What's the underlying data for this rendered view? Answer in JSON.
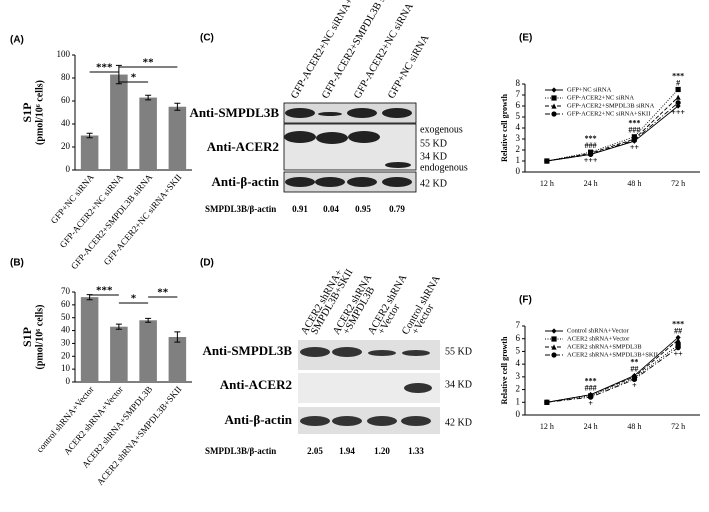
{
  "chart_data": [
    {
      "type": "bar",
      "label": "(A)",
      "ylabel": [
        "S1P",
        "(pmol/10⁶ cells)"
      ],
      "categories": [
        "GFP+NC siRNA",
        "GFP-ACER2+NC siRNA",
        "GFP-ACER2+SMPDL3B siRNA",
        "GFP-ACER2+NC siRNA+SKII"
      ],
      "values": [
        30,
        83,
        63,
        55
      ],
      "errors": [
        2,
        8,
        2,
        3
      ],
      "color": "#808080",
      "ylim": [
        0,
        100
      ],
      "yticks": [
        0,
        20,
        40,
        60,
        80,
        100
      ],
      "significance": [
        {
          "from": 0,
          "to": 1,
          "label": "***"
        },
        {
          "from": 1,
          "to": 2,
          "label": "*"
        },
        {
          "from": 1,
          "to": 3,
          "label": "**"
        }
      ]
    },
    {
      "type": "bar",
      "label": "(B)",
      "ylabel": [
        "S1P",
        "(pmol/10⁶ cells)"
      ],
      "categories": [
        "control shRNA+Vector",
        "ACER2 shRNA+Vector",
        "ACER2 shRNA+SMPDL3B",
        "ACER2 shRNA+SMPDL3B+SKII"
      ],
      "values": [
        66,
        43,
        48,
        35
      ],
      "errors": [
        2,
        2,
        1.5,
        4
      ],
      "color": "#808080",
      "ylim": [
        0,
        70
      ],
      "yticks": [
        0,
        10,
        20,
        30,
        40,
        50,
        60,
        70
      ],
      "significance": [
        {
          "from": 0,
          "to": 1,
          "label": "***"
        },
        {
          "from": 1,
          "to": 2,
          "label": "*"
        },
        {
          "from": 2,
          "to": 3,
          "label": "**"
        }
      ]
    },
    {
      "type": "line",
      "label": "(E)",
      "ylabel": "Relative cell growth",
      "categories": [
        "12 h",
        "24 h",
        "48 h",
        "72 h"
      ],
      "series": [
        {
          "name": "GFP+NC siRNA",
          "color": "#000000",
          "dash": "solid",
          "marker": "diamond",
          "values": [
            1,
            1.6,
            2.8,
            6.0
          ]
        },
        {
          "name": "GFP-ACER2+NC siRNA",
          "color": "#000000",
          "dash": "dotted",
          "marker": "square",
          "values": [
            1,
            1.8,
            3.2,
            7.5
          ]
        },
        {
          "name": "GFP-ACER2+SMPDL3B siRNA",
          "color": "#000000",
          "dash": "dashed",
          "marker": "triangle",
          "values": [
            1,
            1.7,
            3.0,
            6.8
          ]
        },
        {
          "name": "GFP-ACER2+NC siRNA+SKII",
          "color": "#000000",
          "dash": "dashdot",
          "marker": "circle",
          "values": [
            1,
            1.6,
            2.9,
            6.3
          ]
        }
      ],
      "ylim": [
        0,
        8
      ],
      "yticks": [
        0,
        1,
        2,
        3,
        4,
        5,
        6,
        7,
        8
      ],
      "annotations": [
        {
          "category": 1,
          "above": [
            "***",
            "###"
          ],
          "below": [
            "+++"
          ]
        },
        {
          "category": 2,
          "above": [
            "***",
            "###"
          ],
          "below": [
            "++"
          ]
        },
        {
          "category": 3,
          "above": [
            "***",
            "#"
          ],
          "below": [
            "+++"
          ]
        }
      ]
    },
    {
      "type": "line",
      "label": "(F)",
      "ylabel": "Relative cell growth",
      "categories": [
        "12 h",
        "24 h",
        "48 h",
        "72 h"
      ],
      "series": [
        {
          "name": "Control shRNA+Vector",
          "color": "#000000",
          "dash": "solid",
          "marker": "diamond",
          "values": [
            1,
            1.6,
            3.1,
            6.1
          ]
        },
        {
          "name": "ACER2 shRNA+Vector",
          "color": "#000000",
          "dash": "dotted",
          "marker": "square",
          "values": [
            1,
            1.5,
            2.9,
            5.5
          ]
        },
        {
          "name": "ACER2 shRNA+SMPDL3B",
          "color": "#000000",
          "dash": "dashed",
          "marker": "triangle",
          "values": [
            1,
            1.6,
            3.0,
            5.9
          ]
        },
        {
          "name": "ACER2 shRNA+SMPDL3B+SKII",
          "color": "#000000",
          "dash": "dashdot",
          "marker": "circle",
          "values": [
            1,
            1.4,
            2.8,
            5.3
          ]
        }
      ],
      "ylim": [
        0,
        7
      ],
      "yticks": [
        0,
        1,
        2,
        3,
        4,
        5,
        6,
        7
      ],
      "annotations": [
        {
          "category": 1,
          "above": [
            "***",
            "###"
          ],
          "below": [
            "+"
          ]
        },
        {
          "category": 2,
          "above": [
            "**",
            "##"
          ],
          "below": [
            "+"
          ]
        },
        {
          "category": 3,
          "above": [
            "***",
            "##"
          ],
          "below": [
            "++"
          ]
        }
      ]
    }
  ],
  "blots": [
    {
      "label": "(C)",
      "lanes": [
        [
          "GFP-ACER2+NC siRNA+SKII"
        ],
        [
          "GFP-ACER2+SMPDL3B siRNA"
        ],
        [
          "GFP-ACER2+NC siRNA"
        ],
        [
          "GFP+NC siRNA"
        ]
      ],
      "rows": [
        "Anti-SMPDL3B",
        "Anti-ACER2",
        "Anti-β-actin"
      ],
      "markers": [
        "exogenous",
        "55 KD",
        "34 KD",
        "endogenous",
        "42 KD"
      ],
      "ratio_label": "SMPDL3B/β-actin",
      "ratios": [
        "0.91",
        "0.04",
        "0.95",
        "0.79"
      ]
    },
    {
      "label": "(D)",
      "lanes": [
        [
          "ACER2 shRNA+",
          "SMPDL3B+SKII"
        ],
        [
          "ACER2 shRNA",
          "+SMPDL3B"
        ],
        [
          "ACER2 shRNA",
          "+Vector"
        ],
        [
          "Control shRNA",
          "+Vector"
        ]
      ],
      "rows": [
        "Anti-SMPDL3B",
        "Anti-ACER2",
        "Anti-β-actin"
      ],
      "markers": [
        "55 KD",
        "34 KD",
        "42 KD"
      ],
      "ratio_label": "SMPDL3B/β-actin",
      "ratios": [
        "2.05",
        "1.94",
        "1.20",
        "1.33"
      ]
    }
  ]
}
